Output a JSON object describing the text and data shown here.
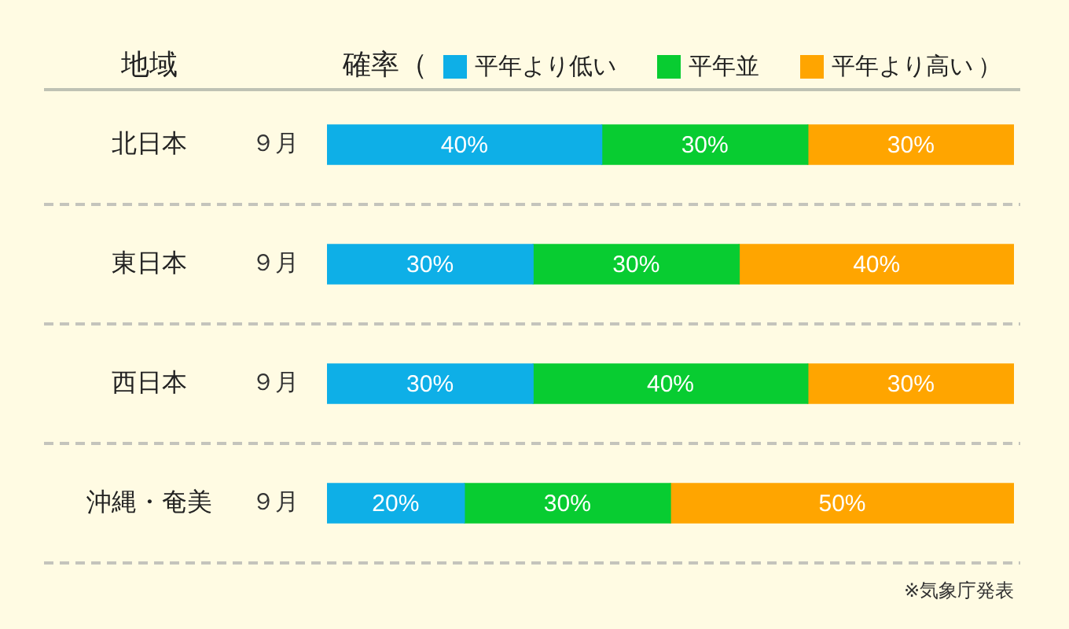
{
  "chart_data": {
    "type": "bar",
    "orientation": "horizontal",
    "stacked": true,
    "ylabel": "地域",
    "legend_title": "確率（",
    "legend": "top",
    "grid": "y",
    "tick_labels": "y",
    "categories": [
      "北日本",
      "東日本",
      "西日本",
      "沖縄・奄美"
    ],
    "xlim": [
      0,
      100
    ],
    "series": [
      {
        "name": "平年より低い",
        "color": "#0eafe7",
        "values": [
          40,
          30,
          30,
          20
        ],
        "value_labels": [
          "40%",
          "30%",
          "30%",
          "20%"
        ]
      },
      {
        "name": "平年並",
        "color": "#08cc31",
        "values": [
          30,
          30,
          40,
          30
        ],
        "value_labels": [
          "30%",
          "30%",
          "40%",
          "30%"
        ]
      },
      {
        "name": "平年より高い",
        "color": "#ffa500",
        "values": [
          30,
          40,
          30,
          50
        ],
        "value_labels": [
          "30%",
          "40%",
          "30%",
          "50%"
        ]
      }
    ],
    "annotations": [
      "９月",
      "９月",
      "９月",
      "９月",
      "）",
      "※気象庁発表"
    ]
  }
}
